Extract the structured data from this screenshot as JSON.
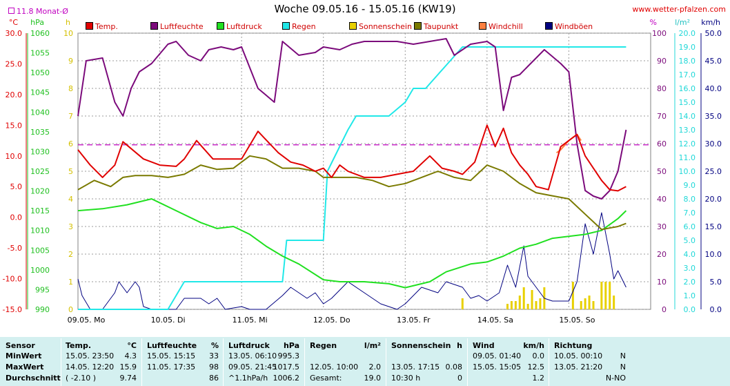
{
  "header": {
    "title": "Woche 09.05.16 - 15.05.16 (KW19)",
    "site": "www.wetter-pfalzen.com",
    "month_avg": "11.8 Monat-Ø"
  },
  "units": {
    "temp": "°C",
    "press": "hPa",
    "hours": "h",
    "pct": "%",
    "rain": "l/m²",
    "wind": "km/h"
  },
  "colors": {
    "temp": "#e00000",
    "humidity": "#7b0a7b",
    "pressure": "#20e020",
    "rain": "#20e8e8",
    "sun": "#e8d000",
    "dewpoint": "#7a7a00",
    "windchill": "#ff8040",
    "gusts": "#000080",
    "avg_line": "#c000c0"
  },
  "legend": [
    {
      "label": "Temp.",
      "color": "#e00000"
    },
    {
      "label": "Luftfeuchte",
      "color": "#7b0a7b"
    },
    {
      "label": "Luftdruck",
      "color": "#20e020"
    },
    {
      "label": "Regen",
      "color": "#20e8e8"
    },
    {
      "label": "Sonnenschein",
      "color": "#e8d000"
    },
    {
      "label": "Taupunkt",
      "color": "#7a7a00"
    },
    {
      "label": "Windchill",
      "color": "#ff8040"
    },
    {
      "label": "Windböen",
      "color": "#000080"
    }
  ],
  "chart_data": {
    "type": "line",
    "title": "Woche 09.05.16 - 15.05.16 (KW19)",
    "x_labels": [
      "09.05. Mo",
      "10.05. Di",
      "11.05. Mi",
      "12.05. Do",
      "13.05. Fr",
      "14.05. Sa",
      "15.05. So"
    ],
    "axes": {
      "temp": {
        "ticks": [
          "30.0",
          "25.0",
          "20.0",
          "15.0",
          "10.0",
          "5.0",
          "0.0",
          "-5.0",
          "-10.0",
          "-15.0"
        ],
        "range": [
          -15,
          30
        ]
      },
      "pressure": {
        "ticks": [
          "1060",
          "1055",
          "1050",
          "1045",
          "1040",
          "1035",
          "1030",
          "1025",
          "1020",
          "1015",
          "1010",
          "1005",
          "1000",
          "995",
          "990"
        ],
        "range": [
          990,
          1060
        ]
      },
      "hours": {
        "ticks": [
          "10",
          "9",
          "8",
          "7",
          "6",
          "5",
          "4",
          "3",
          "2",
          "1",
          "0"
        ],
        "range": [
          0,
          10
        ]
      },
      "humidity": {
        "ticks": [
          "100",
          "90",
          "80",
          "70",
          "60",
          "50",
          "40",
          "30",
          "20",
          "10",
          "0"
        ],
        "range": [
          0,
          100
        ]
      },
      "rain": {
        "ticks": [
          "20.0",
          "19.0",
          "18.0",
          "17.0",
          "16.0",
          "15.0",
          "14.0",
          "13.0",
          "12.0",
          "11.0",
          "10.0",
          "9.0",
          "8.0",
          "7.0",
          "6.0",
          "5.0",
          "4.0",
          "3.0",
          "2.0",
          "1.0",
          "0.0"
        ],
        "range": [
          0,
          20
        ]
      },
      "wind": {
        "ticks": [
          "50.0",
          "45.0",
          "40.0",
          "35.0",
          "30.0",
          "25.0",
          "20.0",
          "15.0",
          "10.0",
          "5.0",
          "0.0"
        ],
        "range": [
          0,
          50
        ]
      }
    },
    "month_avg_temp": 11.8,
    "series": [
      {
        "name": "Temp.",
        "axis": "temp",
        "x": [
          0,
          0.15,
          0.3,
          0.45,
          0.55,
          0.8,
          1.0,
          1.2,
          1.3,
          1.45,
          1.65,
          1.8,
          2.0,
          2.2,
          2.45,
          2.6,
          2.75,
          2.9,
          3.0,
          3.1,
          3.2,
          3.3,
          3.5,
          3.7,
          3.9,
          4.1,
          4.3,
          4.45,
          4.6,
          4.7,
          4.85,
          5.0,
          5.1,
          5.2,
          5.3,
          5.4,
          5.5,
          5.6,
          5.75,
          5.9,
          6.0,
          6.1,
          6.2,
          6.3,
          6.4,
          6.5,
          6.6,
          6.7
        ],
        "values": [
          11.0,
          8.5,
          6.5,
          8.5,
          12.3,
          9.5,
          8.5,
          8.3,
          9.5,
          12.5,
          9.5,
          9.5,
          9.5,
          14.0,
          10.5,
          9.0,
          8.5,
          7.5,
          8.0,
          6.5,
          8.5,
          7.5,
          6.5,
          6.5,
          7.0,
          7.5,
          10.0,
          8.0,
          7.5,
          7.0,
          9.0,
          15.0,
          11.5,
          14.5,
          10.5,
          8.5,
          7.0,
          5.0,
          4.5,
          11.5,
          12.5,
          13.5,
          10.0,
          8.0,
          6.0,
          4.5,
          4.3,
          5.0
        ]
      },
      {
        "name": "Luftfeuchte",
        "axis": "humidity",
        "x": [
          0,
          0.1,
          0.3,
          0.45,
          0.55,
          0.65,
          0.75,
          0.9,
          1.1,
          1.2,
          1.35,
          1.5,
          1.6,
          1.75,
          1.9,
          2.0,
          2.2,
          2.4,
          2.5,
          2.7,
          2.9,
          3.0,
          3.2,
          3.35,
          3.5,
          3.7,
          3.9,
          4.1,
          4.3,
          4.5,
          4.6,
          4.8,
          5.0,
          5.1,
          5.2,
          5.3,
          5.4,
          5.5,
          5.7,
          5.9,
          6.0,
          6.1,
          6.2,
          6.3,
          6.4,
          6.5,
          6.6,
          6.7
        ],
        "values": [
          70,
          90,
          91,
          75,
          70,
          80,
          86,
          89,
          96,
          97,
          92,
          90,
          94,
          95,
          94,
          95,
          80,
          75,
          97,
          92,
          93,
          95,
          94,
          96,
          97,
          97,
          97,
          96,
          97,
          98,
          92,
          96,
          97,
          95,
          72,
          84,
          85,
          88,
          94,
          89,
          86,
          60,
          43,
          41,
          40,
          43,
          50,
          65
        ]
      },
      {
        "name": "Luftdruck",
        "axis": "pressure",
        "x": [
          0,
          0.3,
          0.6,
          0.9,
          1.0,
          1.2,
          1.5,
          1.7,
          1.9,
          2.1,
          2.3,
          2.5,
          2.7,
          3.0,
          3.2,
          3.5,
          3.8,
          4.0,
          4.3,
          4.5,
          4.8,
          5.0,
          5.2,
          5.4,
          5.6,
          5.8,
          6.0,
          6.2,
          6.4,
          6.6,
          6.7
        ],
        "values": [
          1015,
          1015.5,
          1016.5,
          1018,
          1017,
          1015,
          1012,
          1010.5,
          1011,
          1009,
          1006,
          1003.5,
          1001.5,
          997.5,
          997,
          997,
          996.5,
          995.5,
          997,
          999.5,
          1001.5,
          1002,
          1003.5,
          1005.5,
          1006.5,
          1008,
          1008.5,
          1009,
          1010,
          1013,
          1015
        ]
      },
      {
        "name": "Regen",
        "axis": "rain",
        "x": [
          0,
          0.8,
          1.0,
          1.1,
          1.3,
          1.6,
          2.0,
          2.4,
          2.5,
          2.55,
          2.75,
          2.8,
          3.0,
          3.05,
          3.3,
          3.4,
          3.5,
          3.6,
          3.8,
          4.0,
          4.1,
          4.25,
          4.4,
          4.55,
          4.7,
          5.0,
          5.3,
          5.5,
          6.0,
          6.7
        ],
        "values": [
          0,
          0,
          0,
          0,
          2,
          2,
          2,
          2,
          2,
          5,
          5,
          5,
          5,
          10,
          13,
          14,
          14,
          14,
          14,
          15,
          16,
          16,
          17,
          18,
          19,
          19,
          19,
          19,
          19,
          19
        ]
      },
      {
        "name": "Taupunkt",
        "axis": "temp",
        "x": [
          0,
          0.2,
          0.4,
          0.55,
          0.7,
          0.9,
          1.1,
          1.3,
          1.5,
          1.7,
          1.9,
          2.1,
          2.3,
          2.5,
          2.7,
          2.9,
          3.0,
          3.2,
          3.4,
          3.6,
          3.8,
          4.0,
          4.2,
          4.4,
          4.6,
          4.8,
          5.0,
          5.2,
          5.4,
          5.6,
          5.8,
          6.0,
          6.2,
          6.4,
          6.6,
          6.7
        ],
        "values": [
          4.5,
          6.0,
          5.0,
          6.5,
          6.8,
          6.8,
          6.5,
          7.0,
          8.5,
          7.8,
          8.0,
          10.0,
          9.5,
          8.0,
          8.0,
          7.5,
          6.5,
          6.5,
          6.5,
          6.0,
          5.0,
          5.5,
          6.5,
          7.5,
          6.5,
          6.0,
          8.5,
          7.5,
          5.5,
          4.0,
          3.5,
          3.0,
          0.5,
          -2.0,
          -1.5,
          -1.0
        ]
      },
      {
        "name": "Windchill",
        "axis": "temp",
        "x": [
          5.85,
          5.9,
          6.0,
          6.1,
          6.15
        ],
        "values": [
          10.5,
          11.0,
          12.5,
          13.5,
          12.5
        ]
      },
      {
        "name": "Windböen",
        "axis": "wind",
        "x": [
          0,
          0.05,
          0.15,
          0.3,
          0.45,
          0.5,
          0.6,
          0.7,
          0.75,
          0.8,
          0.9,
          1.0,
          1.2,
          1.3,
          1.5,
          1.6,
          1.7,
          1.8,
          2.0,
          2.1,
          2.3,
          2.5,
          2.6,
          2.8,
          2.9,
          3.0,
          3.1,
          3.3,
          3.5,
          3.7,
          3.9,
          4.0,
          4.2,
          4.4,
          4.5,
          4.7,
          4.8,
          4.9,
          5.0,
          5.15,
          5.25,
          5.35,
          5.45,
          5.5,
          5.6,
          5.7,
          5.8,
          6.0,
          6.1,
          6.2,
          6.3,
          6.4,
          6.5,
          6.55,
          6.6,
          6.7
        ],
        "values": [
          5.5,
          2.5,
          0,
          0,
          3,
          5,
          3,
          5,
          4,
          0.5,
          0,
          0,
          0,
          2,
          2,
          1,
          2,
          0,
          0.5,
          0,
          0,
          2.5,
          4,
          2,
          3,
          1,
          2,
          5,
          3,
          1,
          0,
          1,
          4,
          3,
          5,
          4,
          2,
          2.5,
          1.5,
          3,
          8,
          4,
          11.5,
          6,
          4,
          2,
          1.5,
          1.5,
          5,
          15.5,
          10,
          17.5,
          10,
          5.5,
          7,
          4
        ]
      }
    ],
    "bars": {
      "name": "Sonnenschein",
      "axis": "hours",
      "x": [
        4.7,
        5.25,
        5.3,
        5.35,
        5.4,
        5.45,
        5.5,
        5.55,
        5.6,
        5.65,
        5.7,
        6.05,
        6.15,
        6.2,
        6.25,
        6.3,
        6.4,
        6.45,
        6.5,
        6.55
      ],
      "values": [
        0.4,
        0.2,
        0.3,
        0.3,
        0.5,
        0.8,
        0.2,
        0.7,
        0.3,
        0.4,
        0.8,
        1.0,
        0.3,
        0.4,
        0.5,
        0.3,
        1.0,
        1.0,
        1.0,
        0.5
      ]
    }
  },
  "stats": {
    "headers": [
      "Sensor",
      "Temp.",
      "°C",
      "Luftfeuchte",
      "%",
      "Luftdruck",
      "hPa",
      "Regen",
      "l/m²",
      "Sonnenschein",
      "h",
      "Wind",
      "km/h",
      "Richtung"
    ],
    "row_labels": [
      "MinWert",
      "MaxWert",
      "Durchschnitt"
    ],
    "temp": [
      [
        "15.05.  23:50",
        "4.3"
      ],
      [
        "14.05.  12:20",
        "15.9"
      ],
      [
        "( -2.10 )",
        "9.74"
      ]
    ],
    "hum": [
      [
        "15.05.  15:15",
        "33"
      ],
      [
        "11.05.  17:35",
        "98"
      ],
      [
        "",
        "86"
      ]
    ],
    "press": [
      [
        "13.05.  06:10",
        "995.3"
      ],
      [
        "09.05.  21:45",
        "1017.5"
      ],
      [
        "^1.1hPa/h",
        "1006.2"
      ]
    ],
    "rain": [
      [
        "",
        ""
      ],
      [
        "12.05.  10:00",
        "2.0"
      ],
      [
        "Gesamt:",
        "19.0"
      ]
    ],
    "sun": [
      [
        "",
        ""
      ],
      [
        "13.05.  17:15",
        "0.08"
      ],
      [
        "10:30 h",
        "0"
      ]
    ],
    "wind": [
      [
        "09.05.  01:40",
        "0.0"
      ],
      [
        "15.05.  15:05",
        "12.5"
      ],
      [
        "",
        "1.2"
      ]
    ],
    "dir": [
      [
        "10.05.  00:10",
        "N"
      ],
      [
        "13.05.  21:20",
        "N"
      ],
      [
        "",
        "N-NO"
      ]
    ]
  }
}
